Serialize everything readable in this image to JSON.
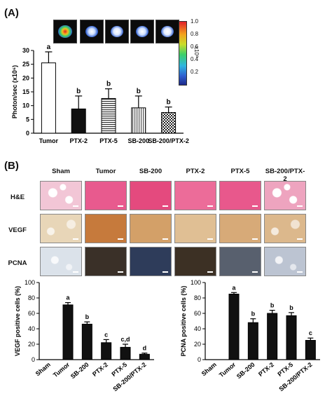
{
  "panel_a_label": "(A)",
  "panel_b_label": "(B)",
  "colorbar": {
    "ticks": [
      "1.0",
      "0.8",
      "0.6",
      "0.4",
      "0.2"
    ],
    "unit": "x10⁸"
  },
  "histology": {
    "columns": [
      "Sham",
      "Tumor",
      "SB-200",
      "PTX-2",
      "PTX-5",
      "SB-200/PTX-2"
    ],
    "rows": [
      "H&E",
      "VEGF",
      "PCNA"
    ]
  },
  "chart_data": [
    {
      "type": "bar",
      "categories": [
        "Tumor",
        "PTX-2",
        "PTX-5",
        "SB-200",
        "SB-200/PTX-2"
      ],
      "values": [
        25.5,
        8.8,
        12.6,
        9.2,
        7.5
      ],
      "errors": [
        4.0,
        4.7,
        3.5,
        4.3,
        2.0
      ],
      "letters": [
        "a",
        "b",
        "b",
        "b",
        "b"
      ],
      "ylabel": "Photon/sec (x10⁶)",
      "ylim": [
        0,
        30
      ],
      "yticks": [
        "0",
        "5",
        "10",
        "15",
        "20",
        "25",
        "30"
      ],
      "fills": [
        "white",
        "black",
        "hstripe",
        "vstripe",
        "check"
      ]
    },
    {
      "type": "bar",
      "categories": [
        "Sham",
        "Tumor",
        "SB-200",
        "PTX-2",
        "PTX-5",
        "SB-200/PTX-2"
      ],
      "values": [
        0,
        71,
        46,
        22,
        16,
        7
      ],
      "errors": [
        0,
        3,
        3,
        4,
        4,
        1.5
      ],
      "letters": [
        "",
        "a",
        "b",
        "c",
        "c,d",
        "d"
      ],
      "ylabel": "VEGF positive cells (%)",
      "ylim": [
        0,
        100
      ],
      "yticks": [
        "0",
        "20",
        "40",
        "60",
        "80",
        "100"
      ]
    },
    {
      "type": "bar",
      "categories": [
        "Sham",
        "Tumor",
        "SB-200",
        "PTX-2",
        "PTX-5",
        "SB-200/PTX-2"
      ],
      "values": [
        0,
        85,
        48,
        60,
        57,
        25
      ],
      "errors": [
        0,
        2,
        5,
        4,
        4,
        3
      ],
      "letters": [
        "",
        "a",
        "b",
        "b",
        "b",
        "c"
      ],
      "ylabel": "PCNA positive cells (%)",
      "ylim": [
        0,
        100
      ],
      "yticks": [
        "0",
        "20",
        "40",
        "60",
        "80",
        "100"
      ]
    }
  ]
}
